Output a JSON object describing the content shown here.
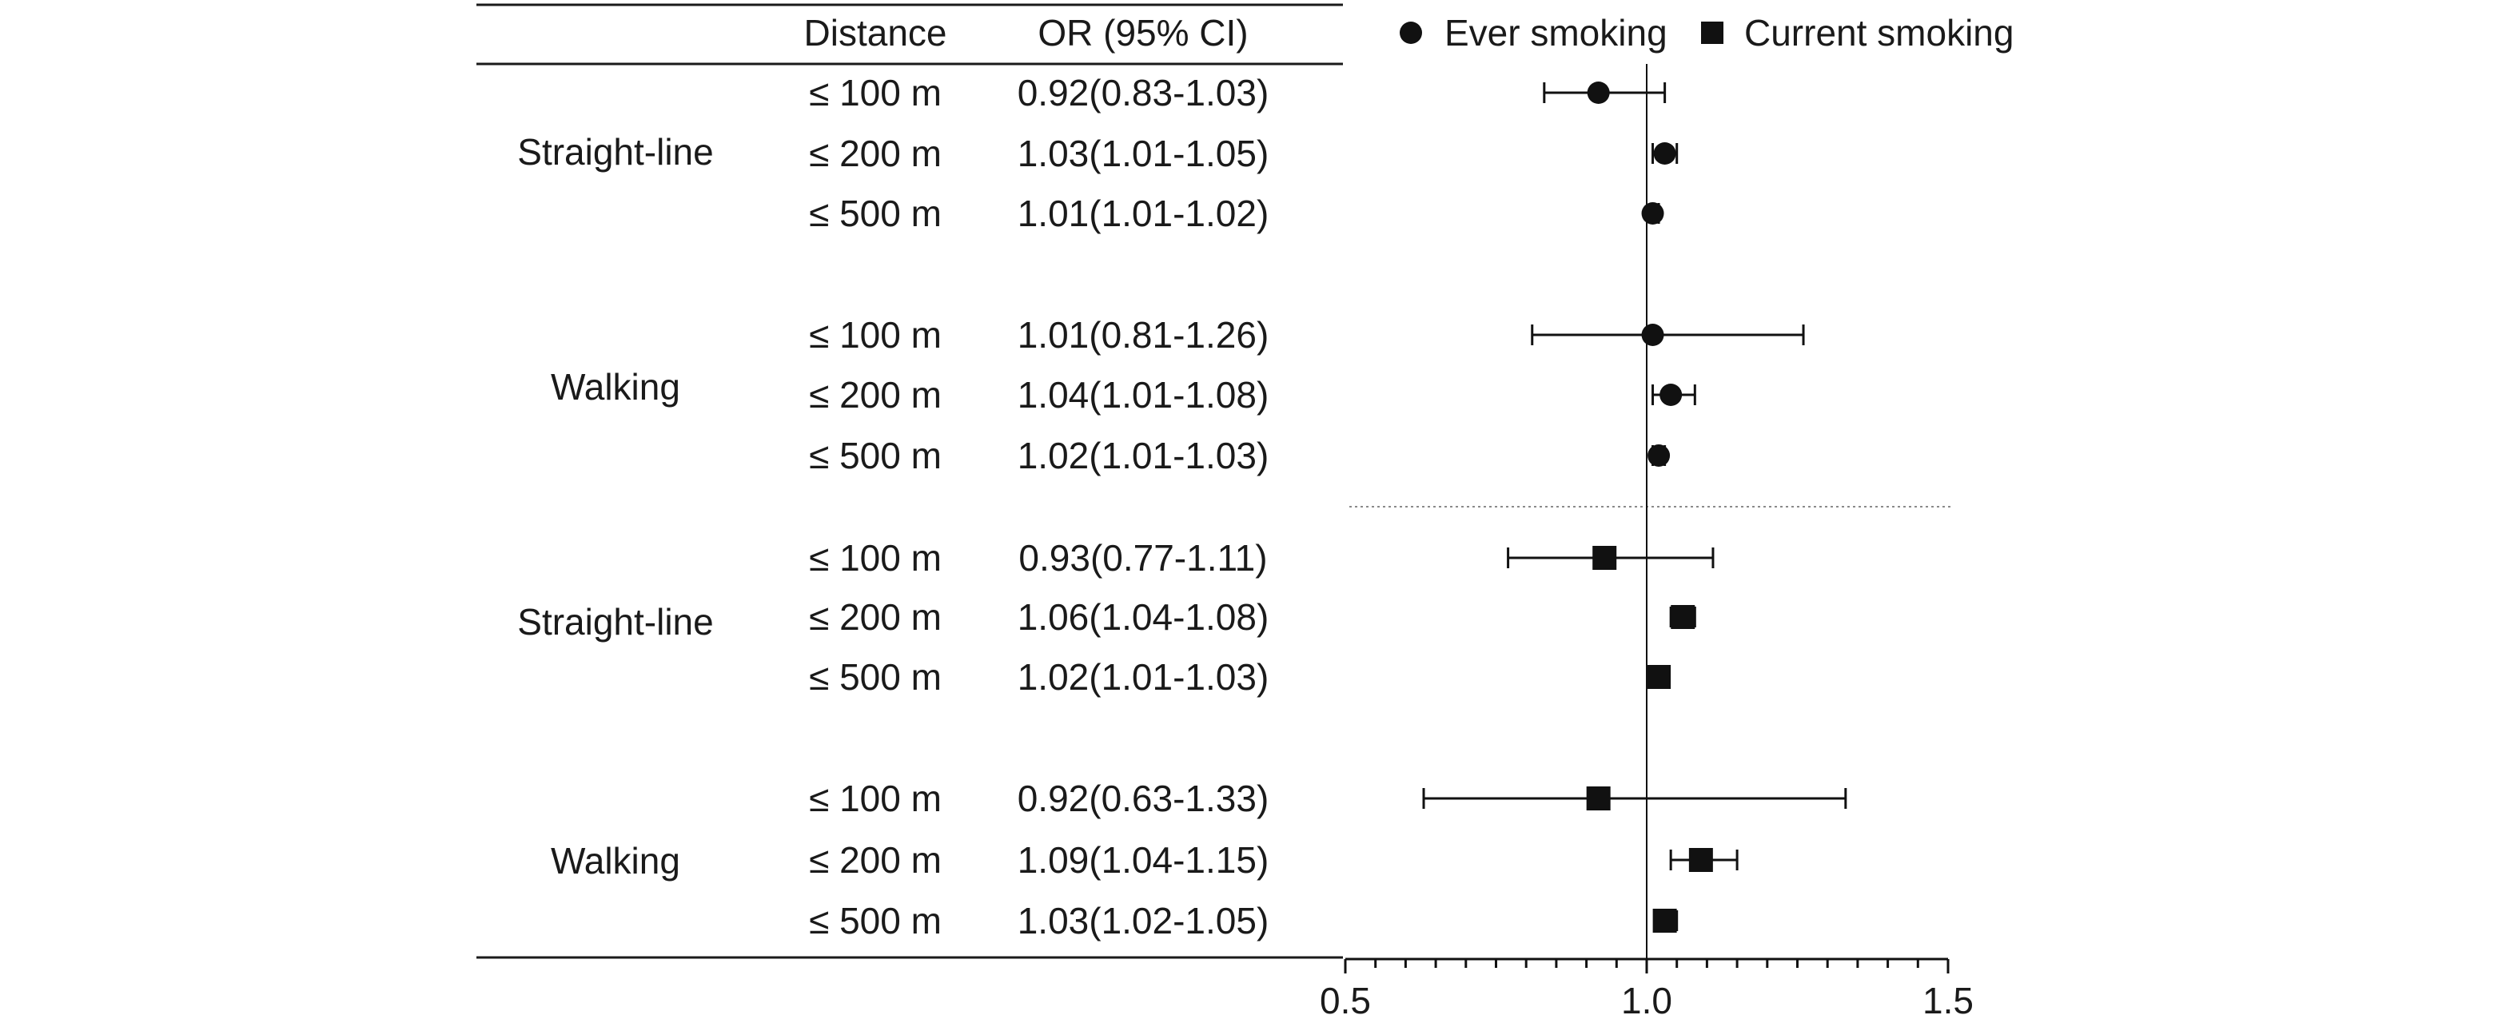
{
  "table": {
    "header_distance": "Distance",
    "header_or": "OR (95% CI)"
  },
  "legend": {
    "ever": "Ever smoking",
    "current": "Current smoking"
  },
  "groups": [
    {
      "label": "Straight-line",
      "series": "ever"
    },
    {
      "label": "Walking",
      "series": "ever"
    },
    {
      "label": "Straight-line",
      "series": "current"
    },
    {
      "label": "Walking",
      "series": "current"
    }
  ],
  "chart_data": {
    "type": "scatter",
    "subtype": "forest_plot",
    "title": "",
    "xlabel": "",
    "ylabel": "",
    "xlim": [
      0.5,
      1.5
    ],
    "x_ticks": [
      "0.5",
      "1.0",
      "1.5"
    ],
    "reference_line": 1.0,
    "legend_position": "top",
    "series": [
      {
        "name": "Ever smoking",
        "marker": "circle",
        "rows": [
          {
            "group": "Straight-line",
            "distance": "≤ 100 m",
            "or": 0.92,
            "lower": 0.83,
            "upper": 1.03,
            "label": "0.92(0.83-1.03)"
          },
          {
            "group": "Straight-line",
            "distance": "≤ 200 m",
            "or": 1.03,
            "lower": 1.01,
            "upper": 1.05,
            "label": "1.03(1.01-1.05)"
          },
          {
            "group": "Straight-line",
            "distance": "≤ 500 m",
            "or": 1.01,
            "lower": 1.01,
            "upper": 1.02,
            "label": "1.01(1.01-1.02)"
          },
          {
            "group": "Walking",
            "distance": "≤ 100 m",
            "or": 1.01,
            "lower": 0.81,
            "upper": 1.26,
            "label": "1.01(0.81-1.26)"
          },
          {
            "group": "Walking",
            "distance": "≤ 200 m",
            "or": 1.04,
            "lower": 1.01,
            "upper": 1.08,
            "label": "1.04(1.01-1.08)"
          },
          {
            "group": "Walking",
            "distance": "≤ 500 m",
            "or": 1.02,
            "lower": 1.01,
            "upper": 1.03,
            "label": "1.02(1.01-1.03)"
          }
        ]
      },
      {
        "name": "Current smoking",
        "marker": "square",
        "rows": [
          {
            "group": "Straight-line",
            "distance": "≤ 100 m",
            "or": 0.93,
            "lower": 0.77,
            "upper": 1.11,
            "label": "0.93(0.77-1.11)"
          },
          {
            "group": "Straight-line",
            "distance": "≤ 200 m",
            "or": 1.06,
            "lower": 1.04,
            "upper": 1.08,
            "label": "1.06(1.04-1.08)"
          },
          {
            "group": "Straight-line",
            "distance": "≤ 500 m",
            "or": 1.02,
            "lower": 1.01,
            "upper": 1.03,
            "label": "1.02(1.01-1.03)"
          },
          {
            "group": "Walking",
            "distance": "≤ 100 m",
            "or": 0.92,
            "lower": 0.63,
            "upper": 1.33,
            "label": "0.92(0.63-1.33)"
          },
          {
            "group": "Walking",
            "distance": "≤ 200 m",
            "or": 1.09,
            "lower": 1.04,
            "upper": 1.15,
            "label": "1.09(1.04-1.15)"
          },
          {
            "group": "Walking",
            "distance": "≤ 500 m",
            "or": 1.03,
            "lower": 1.02,
            "upper": 1.05,
            "label": "1.03(1.02-1.05)"
          }
        ]
      }
    ]
  }
}
